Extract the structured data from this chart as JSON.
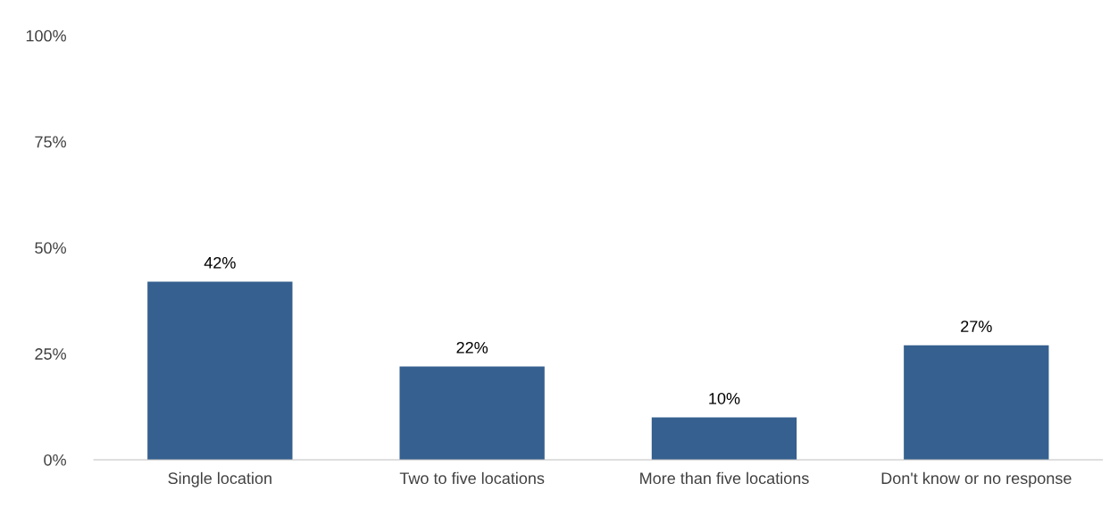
{
  "chart_data": {
    "type": "bar",
    "categories": [
      "Single location",
      "Two to five locations",
      "More than five locations",
      "Don't know or no response"
    ],
    "values": [
      42,
      22,
      10,
      27
    ],
    "value_labels": [
      "42%",
      "22%",
      "10%",
      "27%"
    ],
    "color": "#35608f",
    "ylim": [
      0,
      100
    ],
    "yticks": [
      {
        "value": 0,
        "label": "0%"
      },
      {
        "value": 25,
        "label": "25%"
      },
      {
        "value": 50,
        "label": "50%"
      },
      {
        "value": 75,
        "label": "75%"
      },
      {
        "value": 100,
        "label": "100%"
      }
    ],
    "grid": false,
    "legend": false
  }
}
